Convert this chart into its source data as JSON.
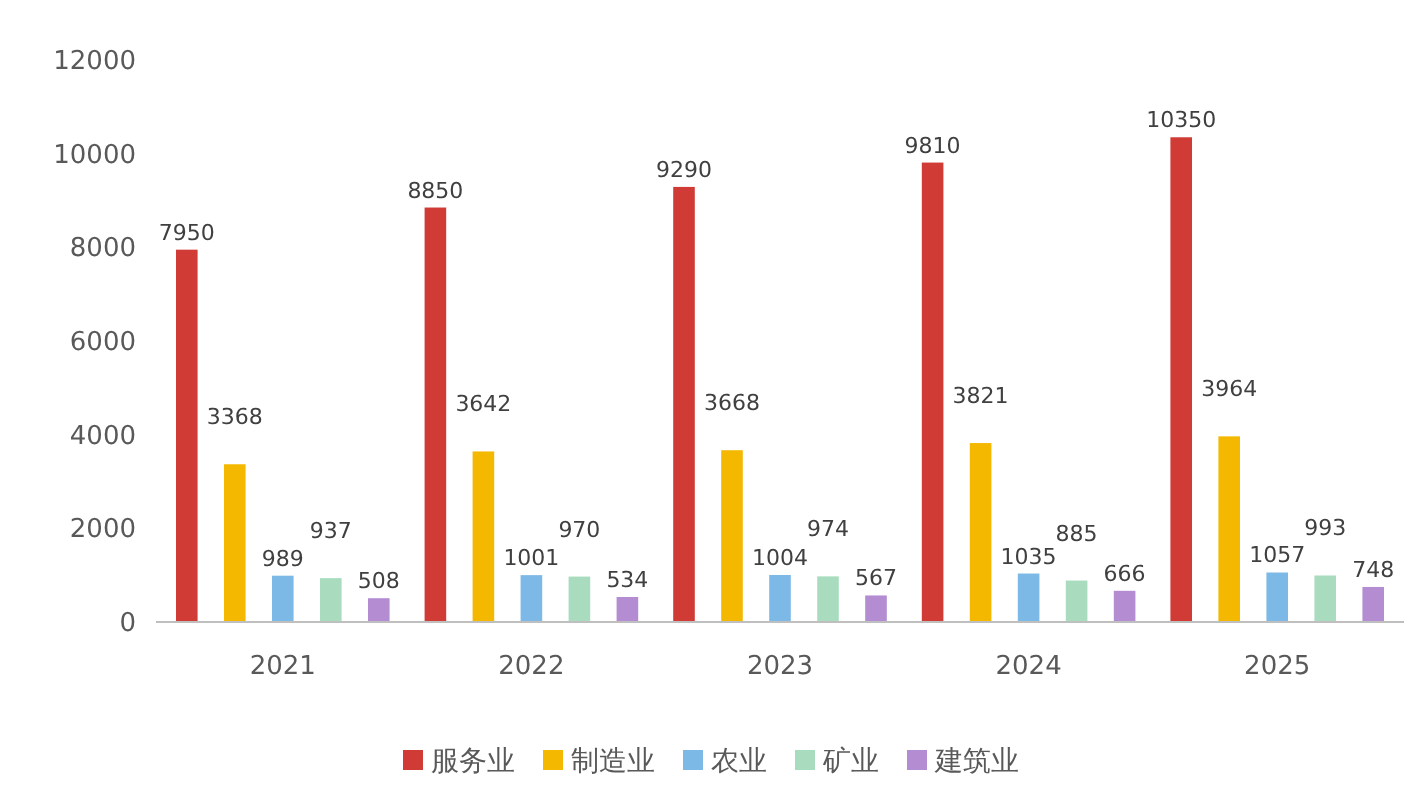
{
  "chart_data": {
    "type": "bar",
    "categories": [
      "2021",
      "2022",
      "2023",
      "2024",
      "2025"
    ],
    "series": [
      {
        "name": "服务业",
        "color": "#d13b36",
        "values": [
          7950,
          8850,
          9290,
          9810,
          10350
        ]
      },
      {
        "name": "制造业",
        "color": "#f5b800",
        "values": [
          3368,
          3642,
          3668,
          3821,
          3964
        ]
      },
      {
        "name": "农业",
        "color": "#7db9e6",
        "values": [
          989,
          1001,
          1004,
          1035,
          1057
        ]
      },
      {
        "name": "矿业",
        "color": "#a9dcbf",
        "values": [
          937,
          970,
          974,
          885,
          993
        ]
      },
      {
        "name": "建筑业",
        "color": "#b48cd2",
        "values": [
          508,
          534,
          567,
          666,
          748
        ]
      }
    ],
    "ylim": [
      0,
      12000
    ],
    "yticks": [
      0,
      2000,
      4000,
      6000,
      8000,
      10000,
      12000
    ],
    "data_labels": true,
    "legend": "bottom"
  }
}
